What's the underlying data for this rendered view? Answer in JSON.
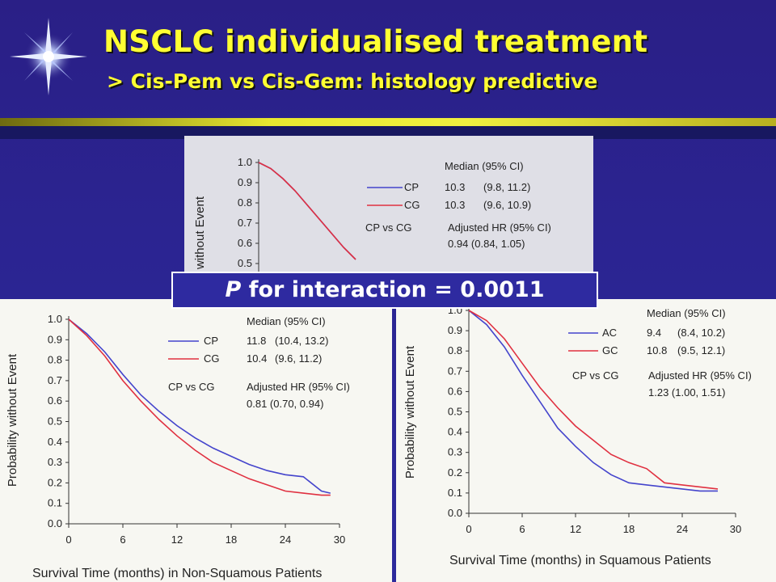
{
  "slide": {
    "title": "NSCLC individualised treatment",
    "subtitle": "> Cis-Pem vs Cis-Gem: histology predictive",
    "banner_p": "P",
    "banner_rest": " for interaction = 0.0011"
  },
  "colors": {
    "blue": "#4444cc",
    "red": "#e03040",
    "title": "#ffff33",
    "background": "#2b2491"
  },
  "chart_data": [
    {
      "type": "line",
      "name": "overall",
      "ylabel": "without Event",
      "xlabel": "",
      "ylim": [
        0.5,
        1.0
      ],
      "yticks": [
        "1.0",
        "0.9",
        "0.8",
        "0.7",
        "0.6",
        "0.5"
      ],
      "legend": {
        "header": "Median (95% CI)",
        "rows": [
          {
            "name": "CP",
            "median": "10.3",
            "ci": "(9.8, 11.2)"
          },
          {
            "name": "CG",
            "median": "10.3",
            "ci": "(9.6, 10.9)"
          }
        ],
        "compare_label": "CP vs CG",
        "hr_header": "Adjusted HR (95% CI)",
        "hr_value": "0.94 (0.84, 1.05)"
      },
      "series": [
        {
          "name": "CP",
          "color": "#4444cc",
          "x": [
            0,
            1,
            2,
            3,
            4,
            5,
            6,
            7,
            8
          ],
          "y": [
            1.0,
            0.97,
            0.92,
            0.86,
            0.79,
            0.72,
            0.65,
            0.58,
            0.52
          ]
        },
        {
          "name": "CG",
          "color": "#e03040",
          "x": [
            0,
            1,
            2,
            3,
            4,
            5,
            6,
            7,
            8
          ],
          "y": [
            1.0,
            0.97,
            0.92,
            0.86,
            0.79,
            0.72,
            0.65,
            0.58,
            0.52
          ]
        }
      ]
    },
    {
      "type": "line",
      "name": "non-squamous",
      "ylabel": "Probability without Event",
      "xlabel": "Survival Time (months) in Non-Squamous Patients",
      "xlim": [
        0,
        30
      ],
      "ylim": [
        0,
        1.0
      ],
      "xticks": [
        "0",
        "6",
        "12",
        "18",
        "24",
        "30"
      ],
      "yticks": [
        "1.0",
        "0.9",
        "0.8",
        "0.7",
        "0.6",
        "0.5",
        "0.4",
        "0.3",
        "0.2",
        "0.1",
        "0.0"
      ],
      "legend": {
        "header": "Median (95% CI)",
        "rows": [
          {
            "name": "CP",
            "median": "11.8",
            "ci": "(10.4, 13.2)"
          },
          {
            "name": "CG",
            "median": "10.4",
            "ci": "(9.6, 11.2)"
          }
        ],
        "compare_label": "CP vs CG",
        "hr_header": "Adjusted HR (95% CI)",
        "hr_value": "0.81 (0.70, 0.94)"
      },
      "series": [
        {
          "name": "CP",
          "color": "#4444cc",
          "x": [
            0,
            2,
            4,
            6,
            8,
            10,
            12,
            14,
            16,
            18,
            20,
            22,
            24,
            26,
            28,
            29
          ],
          "y": [
            1.0,
            0.93,
            0.84,
            0.73,
            0.63,
            0.55,
            0.48,
            0.42,
            0.37,
            0.33,
            0.29,
            0.26,
            0.24,
            0.23,
            0.16,
            0.15
          ]
        },
        {
          "name": "CG",
          "color": "#e03040",
          "x": [
            0,
            2,
            4,
            6,
            8,
            10,
            12,
            14,
            16,
            18,
            20,
            22,
            24,
            26,
            28,
            29
          ],
          "y": [
            1.0,
            0.92,
            0.82,
            0.7,
            0.6,
            0.51,
            0.43,
            0.36,
            0.3,
            0.26,
            0.22,
            0.19,
            0.16,
            0.15,
            0.14,
            0.14
          ]
        }
      ]
    },
    {
      "type": "line",
      "name": "squamous",
      "ylabel": "Probability without Event",
      "xlabel": "Survival Time (months) in Squamous Patients",
      "xlim": [
        0,
        30
      ],
      "ylim": [
        0,
        1.0
      ],
      "xticks": [
        "0",
        "6",
        "12",
        "18",
        "24",
        "30"
      ],
      "yticks": [
        "1.0",
        "0.9",
        "0.8",
        "0.7",
        "0.6",
        "0.5",
        "0.4",
        "0.3",
        "0.2",
        "0.1",
        "0.0"
      ],
      "legend": {
        "header": "Median (95% CI)",
        "rows": [
          {
            "name": "AC",
            "median": "9.4",
            "ci": "(8.4, 10.2)"
          },
          {
            "name": "GC",
            "median": "10.8",
            "ci": "(9.5, 12.1)"
          }
        ],
        "compare_label": "CP vs CG",
        "hr_header": "Adjusted HR (95% CI)",
        "hr_value": "1.23 (1.00, 1.51)"
      },
      "series": [
        {
          "name": "AC",
          "color": "#4444cc",
          "x": [
            0,
            2,
            4,
            6,
            8,
            10,
            12,
            14,
            16,
            18,
            20,
            22,
            24,
            26,
            28
          ],
          "y": [
            1.0,
            0.93,
            0.82,
            0.68,
            0.55,
            0.42,
            0.33,
            0.25,
            0.19,
            0.15,
            0.14,
            0.13,
            0.12,
            0.11,
            0.11
          ]
        },
        {
          "name": "GC",
          "color": "#e03040",
          "x": [
            0,
            2,
            4,
            6,
            8,
            10,
            12,
            14,
            16,
            18,
            20,
            22,
            24,
            26,
            28
          ],
          "y": [
            1.0,
            0.95,
            0.86,
            0.74,
            0.62,
            0.52,
            0.43,
            0.36,
            0.29,
            0.25,
            0.22,
            0.15,
            0.14,
            0.13,
            0.12
          ]
        }
      ]
    }
  ]
}
